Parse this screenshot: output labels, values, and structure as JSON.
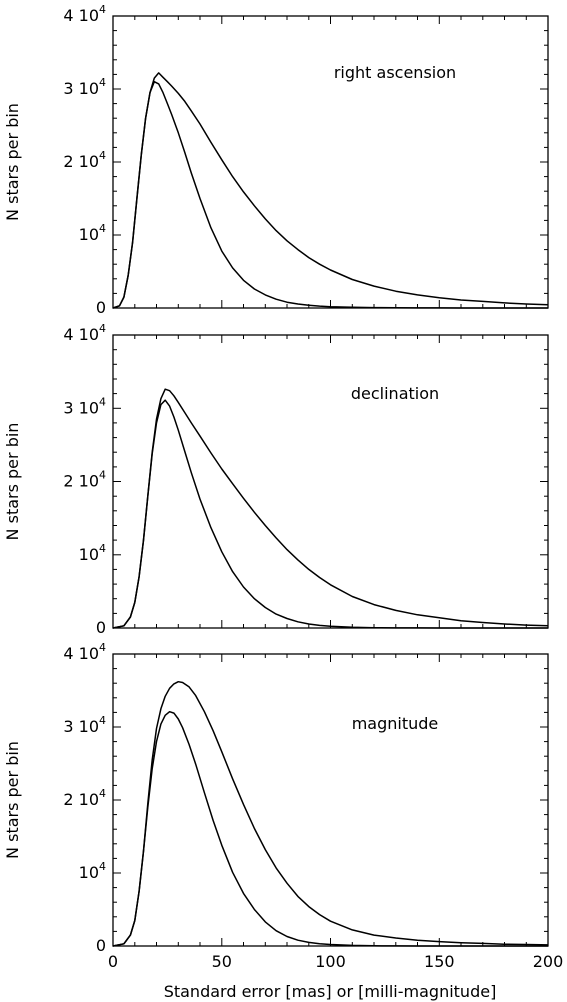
{
  "chart_data": [
    {
      "type": "line",
      "title": "right ascension",
      "xlabel": "",
      "ylabel": "N stars per bin",
      "xlim": [
        0,
        200
      ],
      "ylim": [
        0,
        40000
      ],
      "y_tick_labels": [
        "0",
        "10^4",
        "2 10^4",
        "3 10^4",
        "4 10^4"
      ],
      "series": [
        {
          "x": [
            0,
            3,
            5,
            7,
            9,
            11,
            13,
            15,
            17,
            19,
            21,
            23,
            25,
            27,
            30,
            33,
            36,
            40,
            45,
            50,
            55,
            60,
            65,
            70,
            75,
            80,
            85,
            90,
            95,
            100,
            110,
            120,
            130,
            140,
            150,
            160,
            170,
            180,
            190,
            200
          ],
          "values": [
            0,
            300,
            1500,
            4500,
            9000,
            15000,
            21000,
            26000,
            29500,
            31500,
            32200,
            31600,
            31000,
            30400,
            29400,
            28300,
            27000,
            25200,
            22700,
            20300,
            18000,
            15900,
            14000,
            12200,
            10600,
            9200,
            8000,
            6900,
            6000,
            5200,
            3900,
            3000,
            2300,
            1800,
            1400,
            1100,
            900,
            700,
            550,
            450
          ]
        },
        {
          "x": [
            0,
            3,
            5,
            7,
            9,
            11,
            13,
            15,
            17,
            19,
            21,
            23,
            25,
            27,
            30,
            33,
            36,
            40,
            45,
            50,
            55,
            60,
            65,
            70,
            75,
            80,
            85,
            90,
            95,
            100,
            110,
            120,
            130,
            140,
            150,
            160,
            170,
            180,
            190,
            200
          ],
          "values": [
            0,
            300,
            1500,
            4500,
            9000,
            15000,
            21000,
            26000,
            29500,
            31000,
            30700,
            29500,
            28000,
            26500,
            24000,
            21300,
            18500,
            15000,
            11000,
            7800,
            5500,
            3800,
            2600,
            1800,
            1200,
            800,
            550,
            380,
            260,
            180,
            90,
            50,
            30,
            20,
            10,
            5,
            0,
            0,
            0,
            0
          ]
        }
      ]
    },
    {
      "type": "line",
      "title": "declination",
      "xlabel": "",
      "ylabel": "N stars per bin",
      "xlim": [
        0,
        200
      ],
      "ylim": [
        0,
        40000
      ],
      "y_tick_labels": [
        "0",
        "10^4",
        "2 10^4",
        "3 10^4",
        "4 10^4"
      ],
      "series": [
        {
          "x": [
            0,
            5,
            8,
            10,
            12,
            14,
            16,
            18,
            20,
            22,
            24,
            26,
            28,
            30,
            33,
            36,
            40,
            45,
            50,
            55,
            60,
            65,
            70,
            75,
            80,
            85,
            90,
            95,
            100,
            110,
            120,
            130,
            140,
            150,
            160,
            170,
            180,
            190,
            200
          ],
          "values": [
            0,
            300,
            1500,
            3500,
            7000,
            12000,
            18000,
            24000,
            28500,
            31300,
            32600,
            32400,
            31700,
            30800,
            29400,
            28000,
            26200,
            23900,
            21700,
            19700,
            17700,
            15800,
            14000,
            12300,
            10700,
            9300,
            8000,
            6900,
            5900,
            4300,
            3200,
            2400,
            1800,
            1400,
            1000,
            750,
            550,
            400,
            300
          ]
        },
        {
          "x": [
            0,
            5,
            8,
            10,
            12,
            14,
            16,
            18,
            20,
            22,
            24,
            26,
            28,
            30,
            33,
            36,
            40,
            45,
            50,
            55,
            60,
            65,
            70,
            75,
            80,
            85,
            90,
            95,
            100,
            110,
            120,
            130,
            140,
            150,
            160,
            170,
            180,
            190,
            200
          ],
          "values": [
            0,
            300,
            1500,
            3500,
            7000,
            12000,
            18000,
            23800,
            28000,
            30500,
            31100,
            30300,
            28800,
            27000,
            24100,
            21200,
            17600,
            13700,
            10400,
            7700,
            5600,
            4000,
            2800,
            1900,
            1300,
            850,
            550,
            350,
            230,
            90,
            40,
            20,
            10,
            5,
            0,
            0,
            0,
            0,
            0
          ]
        }
      ]
    },
    {
      "type": "line",
      "title": "magnitude",
      "xlabel": "Standard error [mas] or [milli-magnitude]",
      "ylabel": "N stars per bin",
      "xlim": [
        0,
        200
      ],
      "ylim": [
        0,
        40000
      ],
      "x_tick_labels": [
        "0",
        "50",
        "100",
        "150",
        "200"
      ],
      "y_tick_labels": [
        "0",
        "10^4",
        "2 10^4",
        "3 10^4",
        "4 10^4"
      ],
      "series": [
        {
          "x": [
            0,
            5,
            8,
            10,
            12,
            14,
            16,
            18,
            20,
            22,
            24,
            26,
            28,
            30,
            32,
            35,
            38,
            42,
            46,
            50,
            55,
            60,
            65,
            70,
            75,
            80,
            85,
            90,
            95,
            100,
            110,
            120,
            130,
            140,
            150,
            160,
            170,
            180,
            190,
            200
          ],
          "values": [
            0,
            300,
            1500,
            3500,
            7500,
            13000,
            19500,
            25500,
            29800,
            32500,
            34200,
            35300,
            35900,
            36200,
            36100,
            35500,
            34300,
            32100,
            29500,
            26600,
            22900,
            19400,
            16100,
            13200,
            10700,
            8600,
            6800,
            5400,
            4300,
            3400,
            2200,
            1500,
            1100,
            800,
            600,
            450,
            350,
            250,
            200,
            150
          ]
        },
        {
          "x": [
            0,
            5,
            8,
            10,
            12,
            14,
            16,
            18,
            20,
            22,
            24,
            26,
            28,
            30,
            32,
            35,
            38,
            42,
            46,
            50,
            55,
            60,
            65,
            70,
            75,
            80,
            85,
            90,
            95,
            100,
            110,
            120,
            130,
            140,
            150,
            160,
            170,
            180,
            190,
            200
          ],
          "values": [
            0,
            300,
            1500,
            3500,
            7500,
            13000,
            19000,
            24300,
            28000,
            30400,
            31600,
            32100,
            31900,
            31100,
            29900,
            27600,
            24900,
            21000,
            17200,
            13800,
            10100,
            7200,
            5000,
            3300,
            2100,
            1300,
            800,
            500,
            300,
            200,
            80,
            30,
            10,
            5,
            0,
            0,
            0,
            0,
            0,
            0
          ]
        }
      ]
    }
  ]
}
